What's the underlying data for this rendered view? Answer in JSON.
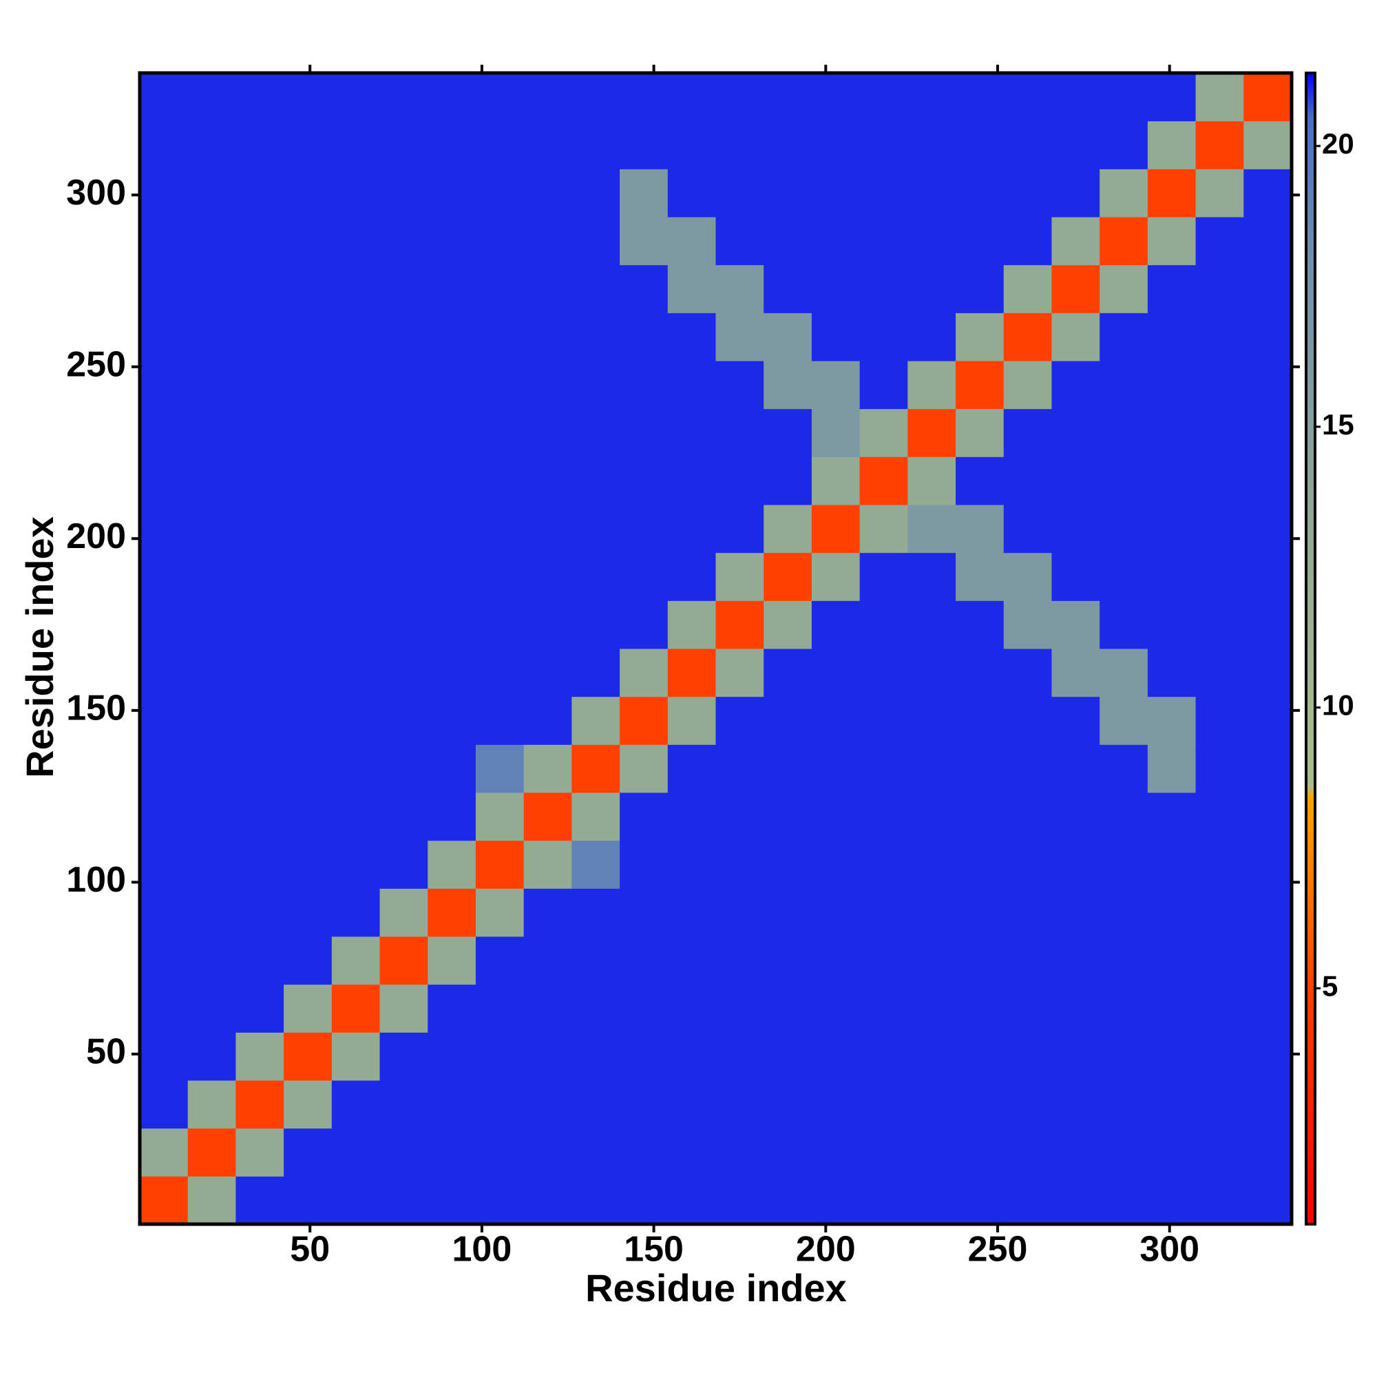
{
  "chart_data": {
    "type": "heatmap",
    "xlabel": "Residue index",
    "ylabel": "Residue index",
    "xlim": [
      0.5,
      335.5
    ],
    "ylim": [
      0.5,
      335.5
    ],
    "xticks": [
      50,
      100,
      150,
      200,
      250,
      300
    ],
    "yticks": [
      50,
      100,
      150,
      200,
      250,
      300
    ],
    "zlim": [
      0.8,
      21.3
    ],
    "colorbar_ticks": [
      5,
      10,
      15,
      20
    ],
    "colorscale": [
      [
        0.8,
        "#ff0000"
      ],
      [
        5,
        "#ff4000"
      ],
      [
        8.4,
        "#ffa500"
      ],
      [
        8.6,
        "#a9bf8a"
      ],
      [
        13,
        "#93aa93"
      ],
      [
        18,
        "#6f8fae"
      ],
      [
        20.5,
        "#4a6fc0"
      ],
      [
        21.3,
        "#0000ff"
      ]
    ],
    "z": [
      [
        5,
        13,
        21,
        21,
        21,
        21,
        21,
        21,
        21,
        21,
        21,
        21,
        21,
        21,
        21,
        21,
        21,
        21,
        21,
        21,
        21,
        21,
        21,
        21
      ],
      [
        13,
        5,
        13,
        21,
        21,
        21,
        21,
        21,
        21,
        21,
        21,
        21,
        21,
        21,
        21,
        21,
        21,
        21,
        21,
        21,
        21,
        21,
        21,
        21
      ],
      [
        21,
        13,
        5,
        13,
        21,
        21,
        21,
        21,
        21,
        21,
        21,
        21,
        21,
        21,
        21,
        21,
        21,
        21,
        21,
        21,
        21,
        21,
        21,
        21
      ],
      [
        21,
        21,
        13,
        5,
        13,
        21,
        21,
        21,
        21,
        21,
        21,
        21,
        21,
        21,
        21,
        21,
        21,
        21,
        21,
        21,
        21,
        21,
        21,
        21
      ],
      [
        21,
        21,
        21,
        13,
        5,
        13,
        21,
        21,
        21,
        21,
        21,
        21,
        21,
        21,
        21,
        21,
        21,
        21,
        21,
        21,
        21,
        21,
        21,
        21
      ],
      [
        21,
        21,
        21,
        21,
        13,
        5,
        13,
        21,
        21,
        21,
        21,
        21,
        21,
        21,
        21,
        21,
        21,
        21,
        21,
        21,
        21,
        21,
        21,
        21
      ],
      [
        21,
        21,
        21,
        21,
        21,
        13,
        5,
        13,
        21,
        21,
        21,
        21,
        21,
        21,
        21,
        21,
        21,
        21,
        21,
        21,
        21,
        21,
        21,
        21
      ],
      [
        21,
        21,
        21,
        21,
        21,
        21,
        13,
        5,
        13,
        19,
        21,
        21,
        21,
        21,
        21,
        21,
        21,
        21,
        21,
        21,
        21,
        21,
        21,
        21
      ],
      [
        21,
        21,
        21,
        21,
        21,
        21,
        21,
        13,
        5,
        13,
        21,
        21,
        21,
        21,
        21,
        21,
        21,
        21,
        21,
        21,
        21,
        21,
        21,
        21
      ],
      [
        21,
        21,
        21,
        21,
        21,
        21,
        21,
        19,
        13,
        5,
        13,
        21,
        21,
        21,
        21,
        21,
        21,
        21,
        21,
        21,
        21,
        16,
        21,
        21
      ],
      [
        21,
        21,
        21,
        21,
        21,
        21,
        21,
        21,
        21,
        13,
        5,
        13,
        21,
        21,
        21,
        21,
        21,
        21,
        21,
        21,
        16,
        16,
        21,
        21
      ],
      [
        21,
        21,
        21,
        21,
        21,
        21,
        21,
        21,
        21,
        21,
        13,
        5,
        13,
        21,
        21,
        21,
        21,
        21,
        21,
        16,
        16,
        21,
        21,
        21
      ],
      [
        21,
        21,
        21,
        21,
        21,
        21,
        21,
        21,
        21,
        21,
        21,
        13,
        5,
        13,
        21,
        21,
        21,
        21,
        16,
        16,
        21,
        21,
        21,
        21
      ],
      [
        21,
        21,
        21,
        21,
        21,
        21,
        21,
        21,
        21,
        21,
        21,
        21,
        13,
        5,
        13,
        21,
        21,
        16,
        16,
        21,
        21,
        21,
        21,
        21
      ],
      [
        21,
        21,
        21,
        21,
        21,
        21,
        21,
        21,
        21,
        21,
        21,
        21,
        21,
        13,
        5,
        13,
        16,
        16,
        21,
        21,
        21,
        21,
        21,
        21
      ],
      [
        21,
        21,
        21,
        21,
        21,
        21,
        21,
        21,
        21,
        21,
        21,
        21,
        21,
        21,
        13,
        5,
        13,
        21,
        21,
        21,
        21,
        21,
        21,
        21
      ],
      [
        21,
        21,
        21,
        21,
        21,
        21,
        21,
        21,
        21,
        21,
        21,
        21,
        21,
        21,
        16,
        13,
        5,
        13,
        21,
        21,
        21,
        21,
        21,
        21
      ],
      [
        21,
        21,
        21,
        21,
        21,
        21,
        21,
        21,
        21,
        21,
        21,
        21,
        21,
        16,
        16,
        21,
        13,
        5,
        13,
        21,
        21,
        21,
        21,
        21
      ],
      [
        21,
        21,
        21,
        21,
        21,
        21,
        21,
        21,
        21,
        21,
        21,
        21,
        16,
        16,
        21,
        21,
        21,
        13,
        5,
        13,
        21,
        21,
        21,
        21
      ],
      [
        21,
        21,
        21,
        21,
        21,
        21,
        21,
        21,
        21,
        21,
        21,
        16,
        16,
        21,
        21,
        21,
        21,
        21,
        13,
        5,
        13,
        21,
        21,
        21
      ],
      [
        21,
        21,
        21,
        21,
        21,
        21,
        21,
        21,
        21,
        21,
        16,
        16,
        21,
        21,
        21,
        21,
        21,
        21,
        21,
        13,
        5,
        13,
        21,
        21
      ],
      [
        21,
        21,
        21,
        21,
        21,
        21,
        21,
        21,
        21,
        21,
        16,
        21,
        21,
        21,
        21,
        21,
        21,
        21,
        21,
        21,
        13,
        5,
        13,
        21
      ],
      [
        21,
        21,
        21,
        21,
        21,
        21,
        21,
        21,
        21,
        21,
        21,
        21,
        21,
        21,
        21,
        21,
        21,
        21,
        21,
        21,
        21,
        13,
        5,
        13
      ],
      [
        21,
        21,
        21,
        21,
        21,
        21,
        21,
        21,
        21,
        21,
        21,
        21,
        21,
        21,
        21,
        21,
        21,
        21,
        21,
        21,
        21,
        21,
        13,
        5
      ]
    ]
  }
}
